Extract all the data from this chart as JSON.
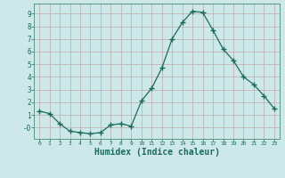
{
  "x": [
    0,
    1,
    2,
    3,
    4,
    5,
    6,
    7,
    8,
    9,
    10,
    11,
    12,
    13,
    14,
    15,
    16,
    17,
    18,
    19,
    20,
    21,
    22,
    23
  ],
  "y": [
    1.3,
    1.1,
    0.3,
    -0.3,
    -0.4,
    -0.5,
    -0.4,
    0.2,
    0.3,
    0.1,
    2.1,
    3.1,
    4.7,
    7.0,
    8.3,
    9.2,
    9.1,
    7.7,
    6.2,
    5.3,
    4.0,
    3.4,
    2.5,
    1.5
  ],
  "line_color": "#1a6b5a",
  "marker": "+",
  "marker_size": 4,
  "bg_color": "#cce8e8",
  "grid_color": "#c4a8a8",
  "xlabel": "Humidex (Indice chaleur)",
  "xlabel_fontsize": 7,
  "ytick_labels": [
    "-0",
    "1",
    "2",
    "3",
    "4",
    "5",
    "6",
    "7",
    "8",
    "9"
  ],
  "ytick_vals": [
    0,
    1,
    2,
    3,
    4,
    5,
    6,
    7,
    8,
    9
  ],
  "xlim": [
    -0.5,
    23.5
  ],
  "ylim": [
    -0.9,
    9.8
  ]
}
